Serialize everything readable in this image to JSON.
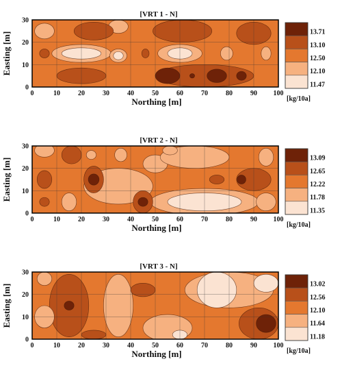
{
  "chart_data": [
    {
      "type": "heatmap",
      "title": "[VRT 1 - N]",
      "xlabel": "Northing [m]",
      "ylabel": "Easting [m]",
      "xlim": [
        0,
        100
      ],
      "ylim": [
        0,
        30
      ],
      "x_ticks": [
        "0",
        "10",
        "20",
        "30",
        "40",
        "50",
        "60",
        "70",
        "80",
        "90",
        "100"
      ],
      "y_ticks": [
        "0",
        "10",
        "20",
        "30"
      ],
      "grid": true,
      "legend_position": "right",
      "legend_levels": [
        "13.71",
        "13.10",
        "12.50",
        "12.10",
        "11.47"
      ],
      "legend_unit": "[kg/10a]",
      "levels": [
        {
          "value": 13.71,
          "color": "#6e2208"
        },
        {
          "value": 13.1,
          "color": "#b8501a"
        },
        {
          "value": 12.5,
          "color": "#e4782f"
        },
        {
          "value": 12.1,
          "color": "#f6b180"
        },
        {
          "value": 11.47,
          "color": "#fbe3d2"
        }
      ],
      "base_level": 2,
      "features": [
        {
          "x": 35,
          "y": 27,
          "rx": 4,
          "ry": 3,
          "level": 3
        },
        {
          "x": 5,
          "y": 25,
          "rx": 4,
          "ry": 3.5,
          "level": 3
        },
        {
          "x": 25,
          "y": 25,
          "rx": 8,
          "ry": 4,
          "level": 1
        },
        {
          "x": 61,
          "y": 25,
          "rx": 12,
          "ry": 5,
          "level": 1
        },
        {
          "x": 90,
          "y": 24,
          "rx": 7,
          "ry": 5,
          "level": 1
        },
        {
          "x": 20,
          "y": 15,
          "rx": 12,
          "ry": 4,
          "level": 3
        },
        {
          "x": 20,
          "y": 15,
          "rx": 8,
          "ry": 2.5,
          "level": 4
        },
        {
          "x": 35,
          "y": 14,
          "rx": 3.5,
          "ry": 3,
          "level": 3
        },
        {
          "x": 35,
          "y": 14,
          "rx": 2,
          "ry": 1.8,
          "level": 4
        },
        {
          "x": 60,
          "y": 15,
          "rx": 9,
          "ry": 4,
          "level": 3
        },
        {
          "x": 60,
          "y": 15,
          "rx": 5,
          "ry": 2.5,
          "level": 4
        },
        {
          "x": 5,
          "y": 15,
          "rx": 2,
          "ry": 2,
          "level": 1
        },
        {
          "x": 46,
          "y": 15,
          "rx": 1.5,
          "ry": 2,
          "level": 1
        },
        {
          "x": 79,
          "y": 15,
          "rx": 2.5,
          "ry": 3,
          "level": 3
        },
        {
          "x": 95,
          "y": 15,
          "rx": 2,
          "ry": 3,
          "level": 3
        },
        {
          "x": 20,
          "y": 5,
          "rx": 10,
          "ry": 3.5,
          "level": 1
        },
        {
          "x": 70,
          "y": 5,
          "rx": 20,
          "ry": 5,
          "level": 1
        },
        {
          "x": 55,
          "y": 5,
          "rx": 5,
          "ry": 3.5,
          "level": 0
        },
        {
          "x": 65,
          "y": 5,
          "rx": 1,
          "ry": 1,
          "level": 0
        },
        {
          "x": 75,
          "y": 5,
          "rx": 4,
          "ry": 3,
          "level": 0
        },
        {
          "x": 85,
          "y": 5,
          "rx": 2,
          "ry": 2,
          "level": 0
        }
      ]
    },
    {
      "type": "heatmap",
      "title": "[VRT 2 - N]",
      "xlabel": "Northing [m]",
      "ylabel": "Easting [m]",
      "xlim": [
        0,
        100
      ],
      "ylim": [
        0,
        30
      ],
      "x_ticks": [
        "0",
        "10",
        "20",
        "30",
        "40",
        "50",
        "60",
        "70",
        "80",
        "90",
        "100"
      ],
      "y_ticks": [
        "0",
        "10",
        "20",
        "30"
      ],
      "grid": true,
      "legend_position": "right",
      "legend_levels": [
        "13.09",
        "12.65",
        "12.22",
        "11.78",
        "11.35"
      ],
      "legend_unit": "[kg/10a]",
      "levels": [
        {
          "value": 13.09,
          "color": "#6e2208"
        },
        {
          "value": 12.65,
          "color": "#b8501a"
        },
        {
          "value": 12.22,
          "color": "#e4782f"
        },
        {
          "value": 11.78,
          "color": "#f6b180"
        },
        {
          "value": 11.35,
          "color": "#fbe3d2"
        }
      ],
      "base_level": 2,
      "features": [
        {
          "x": 35,
          "y": 12,
          "rx": 14,
          "ry": 8,
          "level": 3
        },
        {
          "x": 50,
          "y": 22,
          "rx": 5,
          "ry": 4,
          "level": 3
        },
        {
          "x": 70,
          "y": 5,
          "rx": 22,
          "ry": 6,
          "level": 3
        },
        {
          "x": 70,
          "y": 5,
          "rx": 15,
          "ry": 4,
          "level": 4
        },
        {
          "x": 66,
          "y": 25,
          "rx": 14,
          "ry": 5,
          "level": 3
        },
        {
          "x": 45,
          "y": 5,
          "rx": 4,
          "ry": 5,
          "level": 1
        },
        {
          "x": 45,
          "y": 5,
          "rx": 2,
          "ry": 2,
          "level": 0
        },
        {
          "x": 25,
          "y": 15,
          "rx": 4,
          "ry": 6,
          "level": 1
        },
        {
          "x": 25,
          "y": 15,
          "rx": 2.2,
          "ry": 2.5,
          "level": 0
        },
        {
          "x": 16,
          "y": 26,
          "rx": 4,
          "ry": 4,
          "level": 1
        },
        {
          "x": 5,
          "y": 15,
          "rx": 3,
          "ry": 4,
          "level": 1
        },
        {
          "x": 5,
          "y": 28,
          "rx": 4,
          "ry": 3,
          "level": 3
        },
        {
          "x": 24,
          "y": 26,
          "rx": 2,
          "ry": 2,
          "level": 3
        },
        {
          "x": 36,
          "y": 26,
          "rx": 2.5,
          "ry": 3,
          "level": 3
        },
        {
          "x": 56,
          "y": 28,
          "rx": 3,
          "ry": 2,
          "level": 3
        },
        {
          "x": 75,
          "y": 15,
          "rx": 3,
          "ry": 2,
          "level": 1
        },
        {
          "x": 90,
          "y": 15,
          "rx": 7,
          "ry": 5,
          "level": 1
        },
        {
          "x": 85,
          "y": 15,
          "rx": 1.8,
          "ry": 2,
          "level": 0
        },
        {
          "x": 95,
          "y": 5,
          "rx": 4,
          "ry": 4,
          "level": 3
        },
        {
          "x": 95,
          "y": 25,
          "rx": 3,
          "ry": 4,
          "level": 3
        },
        {
          "x": 15,
          "y": 5,
          "rx": 3,
          "ry": 4,
          "level": 3
        },
        {
          "x": 5,
          "y": 5,
          "rx": 2,
          "ry": 2,
          "level": 1
        }
      ]
    },
    {
      "type": "heatmap",
      "title": "[VRT 3 - N]",
      "xlabel": "Northing [m]",
      "ylabel": "Easting [m]",
      "xlim": [
        0,
        100
      ],
      "ylim": [
        0,
        30
      ],
      "x_ticks": [
        "0",
        "10",
        "20",
        "30",
        "40",
        "50",
        "60",
        "70",
        "80",
        "90",
        "100"
      ],
      "y_ticks": [
        "0",
        "10",
        "20",
        "30"
      ],
      "grid": true,
      "legend_position": "right",
      "legend_levels": [
        "13.02",
        "12.56",
        "12.10",
        "11.64",
        "11.18"
      ],
      "legend_unit": "[kg/10a]",
      "levels": [
        {
          "value": 13.02,
          "color": "#6e2208"
        },
        {
          "value": 12.56,
          "color": "#b8501a"
        },
        {
          "value": 12.1,
          "color": "#e4782f"
        },
        {
          "value": 11.64,
          "color": "#f6b180"
        },
        {
          "value": 11.18,
          "color": "#fbe3d2"
        }
      ],
      "base_level": 2,
      "features": [
        {
          "x": 15,
          "y": 15,
          "rx": 8,
          "ry": 14,
          "level": 1
        },
        {
          "x": 15,
          "y": 15,
          "rx": 2,
          "ry": 2,
          "level": 0
        },
        {
          "x": 35,
          "y": 15,
          "rx": 6,
          "ry": 14,
          "level": 3
        },
        {
          "x": 5,
          "y": 10,
          "rx": 4,
          "ry": 5,
          "level": 3
        },
        {
          "x": 5,
          "y": 27,
          "rx": 3,
          "ry": 3,
          "level": 3
        },
        {
          "x": 55,
          "y": 5,
          "rx": 10,
          "ry": 6,
          "level": 3
        },
        {
          "x": 60,
          "y": 2,
          "rx": 3,
          "ry": 2,
          "level": 4
        },
        {
          "x": 80,
          "y": 22,
          "rx": 18,
          "ry": 8,
          "level": 3
        },
        {
          "x": 75,
          "y": 22,
          "rx": 8,
          "ry": 8,
          "level": 4
        },
        {
          "x": 95,
          "y": 25,
          "rx": 5,
          "ry": 4,
          "level": 4
        },
        {
          "x": 25,
          "y": 2,
          "rx": 5,
          "ry": 2,
          "level": 1
        },
        {
          "x": 45,
          "y": 22,
          "rx": 5,
          "ry": 3,
          "level": 1
        },
        {
          "x": 92,
          "y": 7,
          "rx": 8,
          "ry": 7,
          "level": 1
        },
        {
          "x": 95,
          "y": 7,
          "rx": 4,
          "ry": 4,
          "level": 0
        }
      ]
    }
  ]
}
